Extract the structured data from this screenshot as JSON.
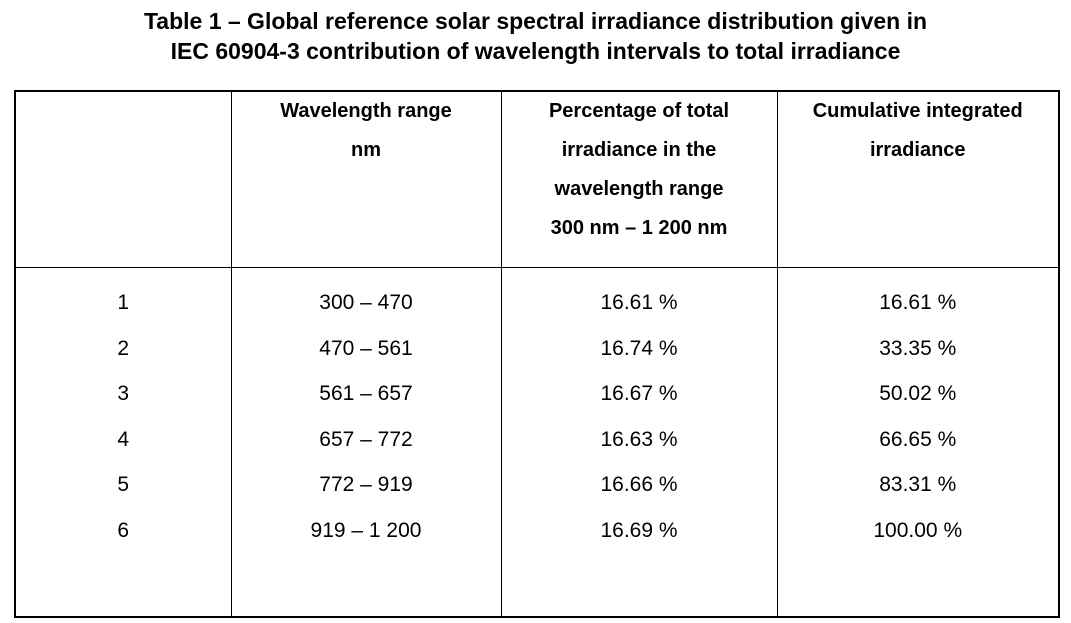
{
  "title": {
    "line1": "Table 1 – Global reference solar spectral irradiance distribution given in",
    "line2": "IEC 60904-3 contribution of wavelength intervals to total irradiance"
  },
  "table": {
    "headers": {
      "corner": "",
      "wavelength": [
        "Wavelength range",
        "nm"
      ],
      "percentage": [
        "Percentage of total",
        "irradiance in the",
        "wavelength range",
        "300 nm – 1 200 nm"
      ],
      "cumulative": [
        "Cumulative integrated",
        "irradiance"
      ]
    },
    "rows": [
      {
        "index": "1",
        "range": "300 – 470",
        "percentage": "16.61 %",
        "cumulative": "16.61 %"
      },
      {
        "index": "2",
        "range": "470 – 561",
        "percentage": "16.74 %",
        "cumulative": "33.35 %"
      },
      {
        "index": "3",
        "range": "561 – 657",
        "percentage": "16.67 %",
        "cumulative": "50.02 %"
      },
      {
        "index": "4",
        "range": "657 – 772",
        "percentage": "16.63 %",
        "cumulative": "66.65 %"
      },
      {
        "index": "5",
        "range": "772 – 919",
        "percentage": "16.66 %",
        "cumulative": "83.31 %"
      },
      {
        "index": "6",
        "range": "919 – 1 200",
        "percentage": "16.69 %",
        "cumulative": "100.00 %"
      }
    ]
  }
}
